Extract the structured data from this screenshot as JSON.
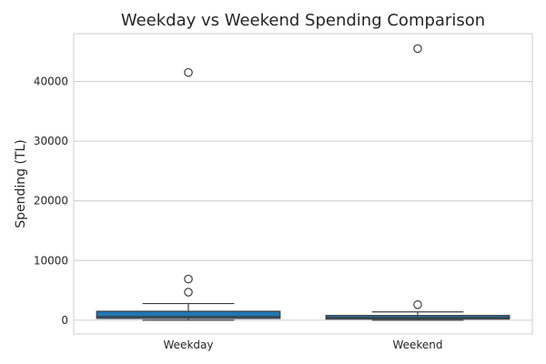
{
  "chart_data": {
    "type": "box",
    "title": "Weekday vs Weekend Spending Comparison",
    "xlabel": "",
    "ylabel": "Spending (TL)",
    "categories": [
      "Weekday",
      "Weekend"
    ],
    "ylim": [
      -2300,
      48000
    ],
    "yticks": [
      0,
      10000,
      20000,
      30000,
      40000
    ],
    "grid": true,
    "box_color": "#1f77b4",
    "boxes": [
      {
        "category": "Weekday",
        "whisker_low": 0,
        "q1": 300,
        "median": 600,
        "q3": 1500,
        "whisker_high": 2800,
        "outliers": [
          4700,
          6900,
          41500
        ]
      },
      {
        "category": "Weekend",
        "whisker_low": 0,
        "q1": 200,
        "median": 450,
        "q3": 800,
        "whisker_high": 1400,
        "outliers": [
          2600,
          45500
        ]
      }
    ]
  }
}
